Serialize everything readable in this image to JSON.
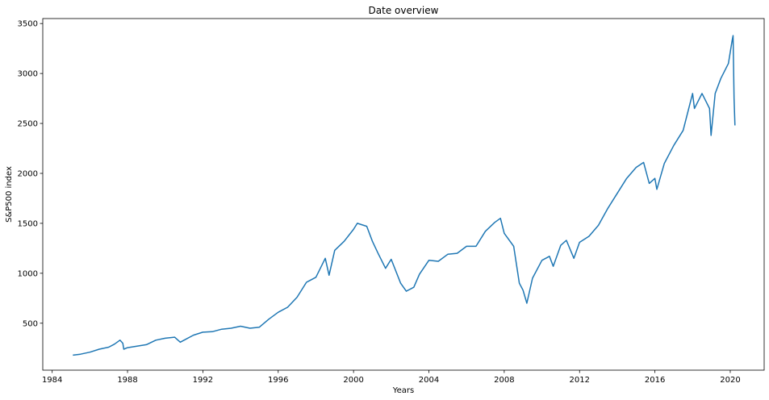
{
  "chart_data": {
    "type": "line",
    "title": "Date overview",
    "xlabel": "Years",
    "ylabel": "S&P500 index",
    "xlim": [
      1983.5,
      2021.8
    ],
    "ylim": [
      30,
      3550
    ],
    "x_ticks": [
      1984,
      1988,
      1992,
      1996,
      2000,
      2004,
      2008,
      2012,
      2016,
      2020
    ],
    "y_ticks": [
      500,
      1000,
      1500,
      2000,
      2500,
      3000,
      3500
    ],
    "grid": false,
    "legend": "none",
    "line_color": "#1f77b4",
    "series": [
      {
        "x": [
          1985.1,
          1985.5,
          1986.0,
          1986.5,
          1987.0,
          1987.3,
          1987.6,
          1987.75,
          1987.8,
          1988.0,
          1988.5,
          1989.0,
          1989.5,
          1990.0,
          1990.5,
          1990.8,
          1991.0,
          1991.5,
          1992.0,
          1992.5,
          1993.0,
          1993.5,
          1994.0,
          1994.5,
          1995.0,
          1995.5,
          1996.0,
          1996.5,
          1997.0,
          1997.5,
          1998.0,
          1998.5,
          1998.7,
          1999.0,
          1999.5,
          2000.0,
          2000.2,
          2000.7,
          2001.0,
          2001.3,
          2001.7,
          2002.0,
          2002.5,
          2002.8,
          2003.2,
          2003.5,
          2004.0,
          2004.5,
          2005.0,
          2005.5,
          2006.0,
          2006.5,
          2007.0,
          2007.5,
          2007.8,
          2008.0,
          2008.5,
          2008.8,
          2009.0,
          2009.2,
          2009.5,
          2010.0,
          2010.4,
          2010.6,
          2011.0,
          2011.3,
          2011.7,
          2012.0,
          2012.5,
          2013.0,
          2013.5,
          2014.0,
          2014.5,
          2015.0,
          2015.4,
          2015.7,
          2016.0,
          2016.1,
          2016.5,
          2017.0,
          2017.5,
          2018.0,
          2018.1,
          2018.5,
          2018.9,
          2018.98,
          2019.2,
          2019.5,
          2019.9,
          2020.1,
          2020.15,
          2020.2,
          2020.25
        ],
        "y": [
          180,
          190,
          210,
          240,
          260,
          290,
          330,
          300,
          240,
          255,
          270,
          285,
          330,
          350,
          360,
          310,
          330,
          380,
          410,
          415,
          440,
          450,
          470,
          450,
          460,
          540,
          610,
          660,
          760,
          910,
          960,
          1150,
          980,
          1230,
          1320,
          1440,
          1500,
          1470,
          1320,
          1200,
          1050,
          1140,
          900,
          820,
          860,
          990,
          1130,
          1120,
          1190,
          1200,
          1270,
          1270,
          1420,
          1510,
          1550,
          1400,
          1270,
          900,
          830,
          700,
          950,
          1130,
          1170,
          1070,
          1280,
          1330,
          1150,
          1310,
          1370,
          1480,
          1650,
          1800,
          1950,
          2060,
          2110,
          1900,
          1950,
          1840,
          2100,
          2280,
          2430,
          2800,
          2650,
          2800,
          2650,
          2380,
          2800,
          2950,
          3100,
          3330,
          3380,
          2750,
          2480
        ]
      }
    ]
  }
}
